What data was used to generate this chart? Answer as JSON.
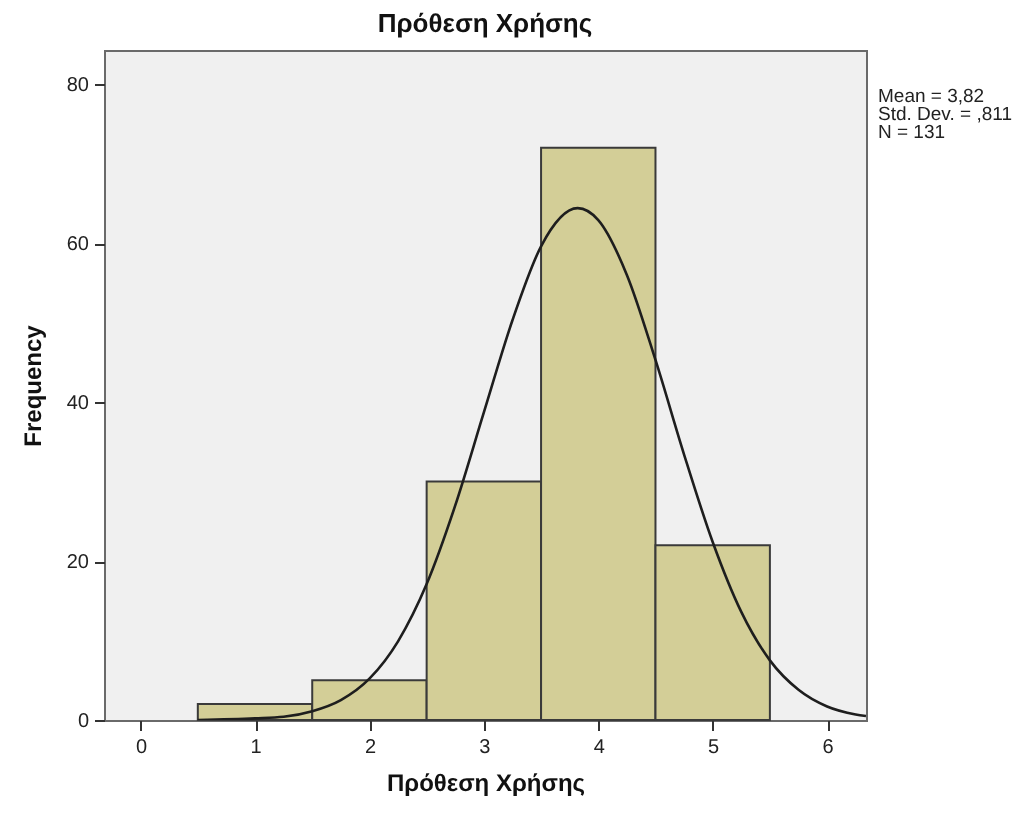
{
  "chart_data": {
    "type": "histogram",
    "title": "Πρόθεση Χρήσης",
    "xlabel": "Πρόθεση Χρήσης",
    "ylabel": "Frequency",
    "bins": [
      0.5,
      1.5,
      2.5,
      3.5,
      4.5,
      5.5
    ],
    "series": [
      {
        "color": "#d3ce97",
        "values": [
          2,
          5,
          30,
          72,
          22
        ]
      },
      {
        "type": "line",
        "color": "#1e1e1e",
        "x": [
          0.5,
          1,
          1.25,
          1.5,
          1.75,
          2,
          2.25,
          2.5,
          2.75,
          3,
          3.25,
          3.5,
          3.82,
          4,
          4.25,
          4.5,
          4.75,
          5,
          5.25,
          5.5,
          5.75,
          6,
          6.25,
          6.34
        ],
        "values": [
          0,
          0.2,
          0.4,
          1.1,
          2.5,
          5.2,
          9.9,
          17.1,
          27,
          38.7,
          50.3,
          59.6,
          64.4,
          62.9,
          56,
          45.3,
          33.4,
          22.4,
          13.6,
          7.5,
          3.8,
          1.7,
          0.7,
          0.5
        ]
      }
    ],
    "xlim": [
      -0.32,
      6.34
    ],
    "ylim": [
      0,
      84.3
    ],
    "xticks": [
      0,
      1,
      2,
      3,
      4,
      5,
      6
    ],
    "yticks": [
      0,
      20,
      40,
      60,
      80
    ],
    "annotations": [
      "Mean = 3,82",
      "Std. Dev. = ,811",
      "N = 131"
    ]
  }
}
